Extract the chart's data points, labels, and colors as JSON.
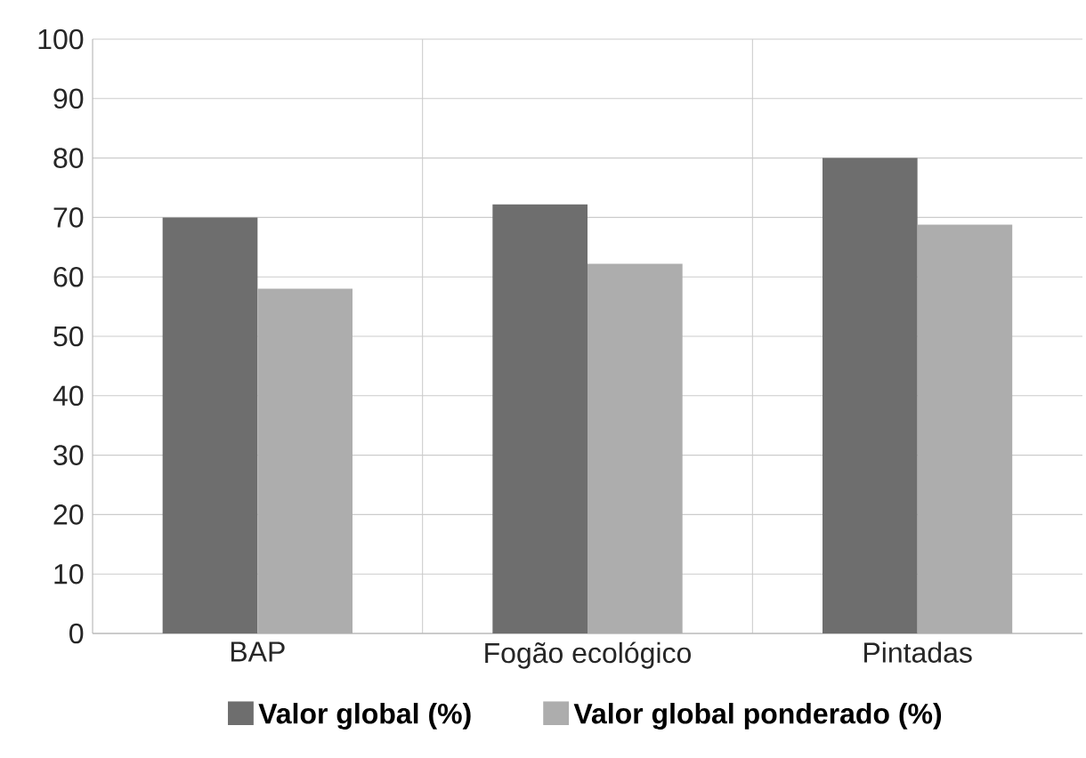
{
  "chart_data": {
    "type": "bar",
    "categories": [
      "BAP",
      "Fogão ecológico",
      "Pintadas"
    ],
    "series": [
      {
        "name": "Valor global (%)",
        "color": "#6e6e6e",
        "values": [
          70,
          72.2,
          80
        ]
      },
      {
        "name": "Valor global ponderado (%)",
        "color": "#adadad",
        "values": [
          58,
          62.2,
          68.8
        ]
      }
    ],
    "ylim": [
      0,
      100
    ],
    "yticks": [
      0,
      10,
      20,
      30,
      40,
      50,
      60,
      70,
      80,
      90,
      100
    ],
    "grid": true,
    "legend": "bottom"
  }
}
